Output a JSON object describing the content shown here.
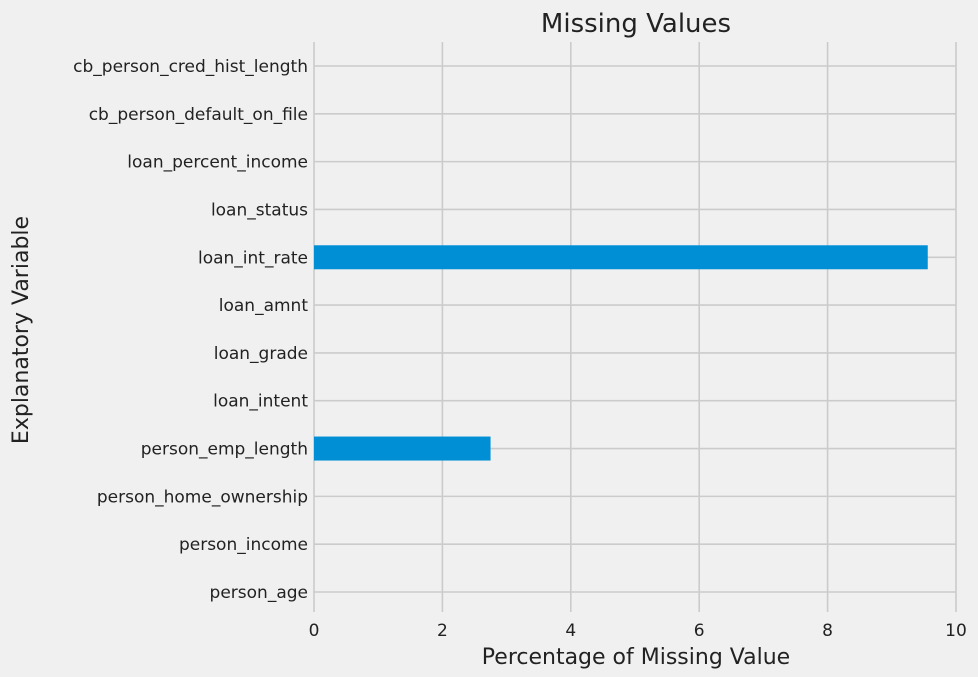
{
  "chart_data": {
    "type": "bar",
    "orientation": "horizontal",
    "title": "Missing Values",
    "xlabel": "Percentage of Missing Value",
    "ylabel": "Explanatory Variable",
    "categories": [
      "person_age",
      "person_income",
      "person_home_ownership",
      "person_emp_length",
      "loan_intent",
      "loan_grade",
      "loan_amnt",
      "loan_int_rate",
      "loan_status",
      "loan_percent_income",
      "cb_person_default_on_file",
      "cb_person_cred_hist_length"
    ],
    "values": [
      0,
      0,
      0,
      2.75,
      0,
      0,
      0,
      9.56,
      0,
      0,
      0,
      0
    ],
    "xlim": [
      0,
      10
    ],
    "xticks": [
      0,
      2,
      4,
      6,
      8,
      10
    ],
    "grid": true,
    "bar_color": "#008fd5",
    "background_color": "#f0f0f0"
  }
}
